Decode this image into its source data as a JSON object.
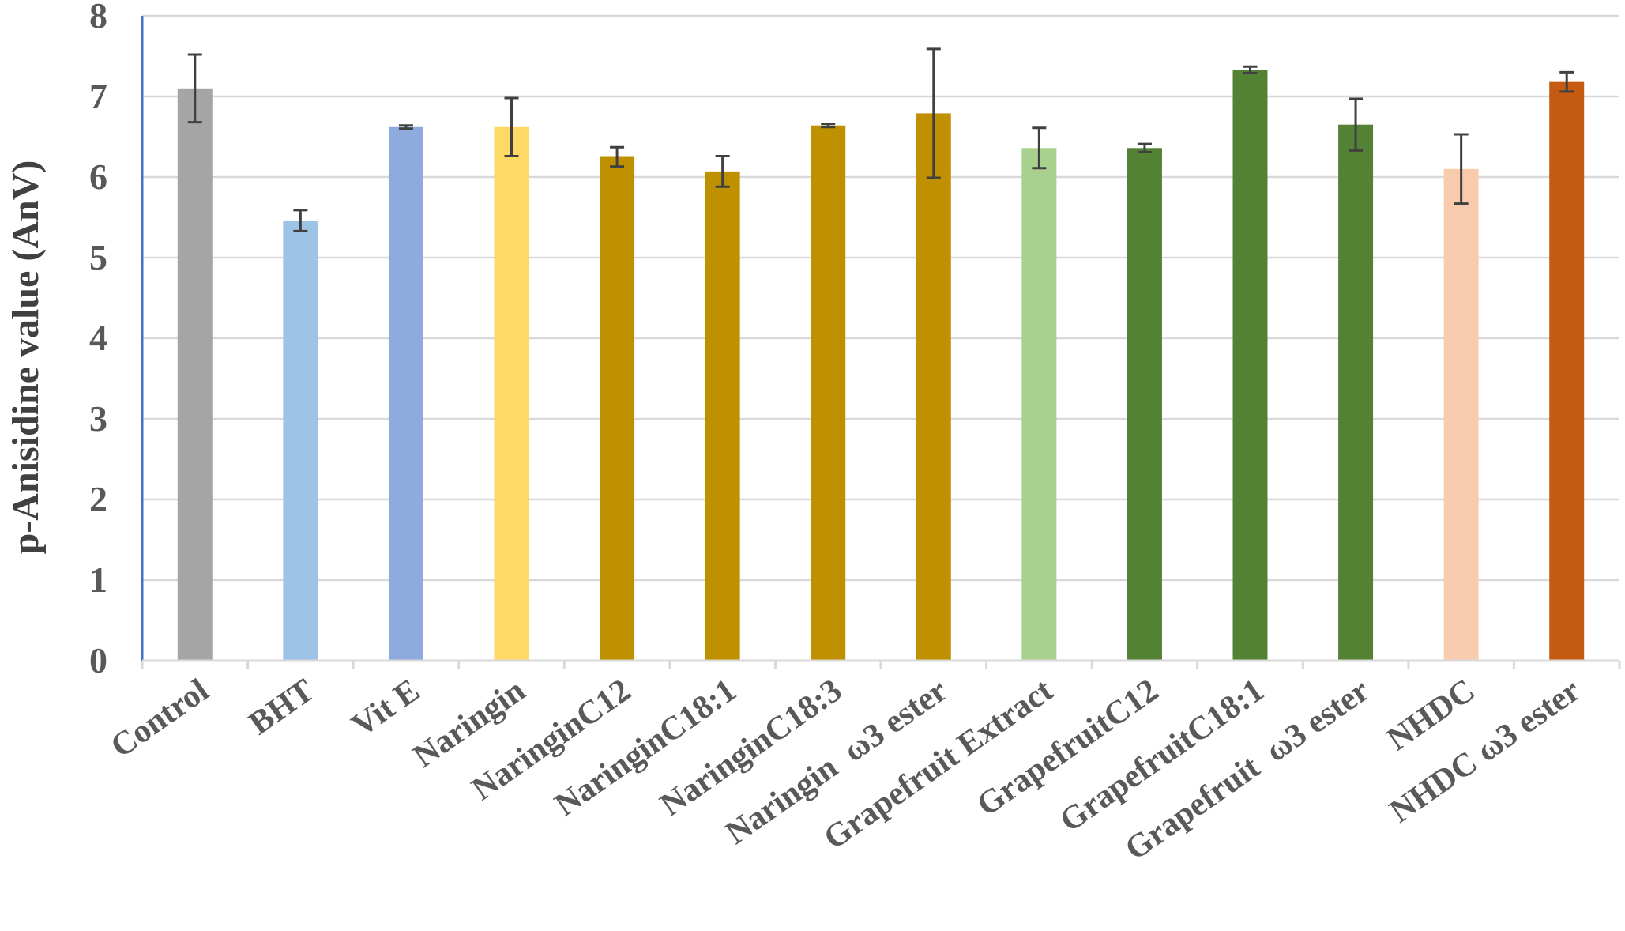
{
  "chart_data": {
    "type": "bar",
    "title": "",
    "xlabel": "",
    "ylabel": "p-Anisidine value (AnV)",
    "ylim": [
      0,
      8
    ],
    "yticks": [
      "0",
      "1",
      "2",
      "3",
      "4",
      "5",
      "6",
      "7",
      "8"
    ],
    "grid": true,
    "legend": "none",
    "categories": [
      "Control",
      "BHT",
      "Vit E",
      "Naringin",
      "NaringinC12",
      "NaringinC18:1",
      "NaringinC18:3",
      "Naringin  ω3 ester",
      "Grapefruit Extract",
      "GrapefruitC12",
      "GrapefruitC18:1",
      "Grapefruit  ω3 ester",
      "NHDC",
      "NHDC ω3 ester"
    ],
    "values": [
      7.1,
      5.46,
      6.62,
      6.62,
      6.25,
      6.07,
      6.64,
      6.79,
      6.36,
      6.36,
      7.33,
      6.65,
      6.1,
      7.18
    ],
    "errors": [
      0.42,
      0.13,
      0.02,
      0.36,
      0.12,
      0.19,
      0.02,
      0.8,
      0.25,
      0.05,
      0.04,
      0.32,
      0.43,
      0.12
    ],
    "colors": [
      "#a5a5a5",
      "#9dc3e6",
      "#8faadc",
      "#ffd966",
      "#bf9000",
      "#bf9000",
      "#bf9000",
      "#bf9000",
      "#a9d18e",
      "#548235",
      "#548235",
      "#548235",
      "#f8cbad",
      "#c55a11"
    ],
    "axis_color": "#4472c4",
    "grid_color": "#d9d9d9",
    "error_bar_color": "#404040"
  }
}
